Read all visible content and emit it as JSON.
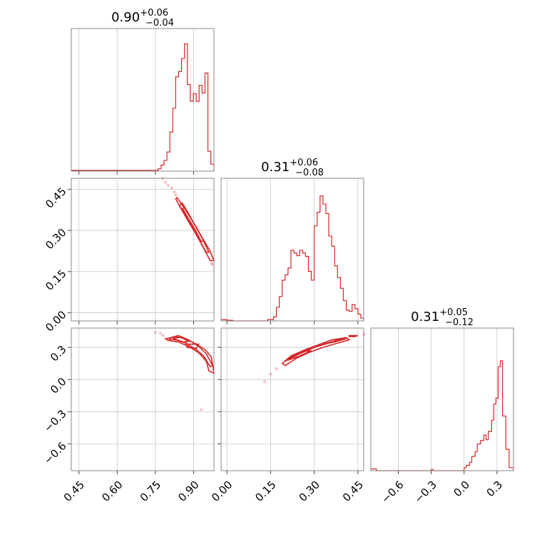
{
  "colors": {
    "main": "#d62728",
    "grid": "#c8c8c8",
    "frame": "#888888"
  },
  "chart_data": [
    {
      "type": "histogram",
      "panel": "diag-0",
      "title": {
        "value": "0.90",
        "plus": "+0.06",
        "minus": "−0.04"
      },
      "xlim": [
        0.42,
        0.98
      ],
      "xticks": [
        0.45,
        0.6,
        0.75,
        0.9
      ],
      "bins_x": [
        0.42,
        0.7608,
        0.7723,
        0.7838,
        0.7953,
        0.8068,
        0.8183,
        0.8298,
        0.8413,
        0.8528,
        0.8643,
        0.8758,
        0.8873,
        0.8988,
        0.9103,
        0.9218,
        0.9333,
        0.9448,
        0.9563,
        0.9678,
        0.98
      ],
      "counts": [
        1,
        3,
        8,
        14,
        25,
        51,
        82,
        123,
        130,
        147,
        166,
        113,
        91,
        101,
        91,
        112,
        102,
        128,
        26,
        9
      ],
      "ylim": [
        0,
        186
      ]
    },
    {
      "type": "histogram",
      "panel": "diag-1",
      "title": {
        "value": "0.31",
        "plus": "+0.06",
        "minus": "−0.08"
      },
      "xlim": [
        -0.02,
        0.47
      ],
      "xticks": [
        0.0,
        0.15,
        0.3,
        0.45
      ],
      "bins_x": [
        -0.02,
        0.0,
        0.02,
        0.14,
        0.16,
        0.17,
        0.18,
        0.19,
        0.2,
        0.21,
        0.22,
        0.23,
        0.24,
        0.25,
        0.26,
        0.27,
        0.28,
        0.29,
        0.3,
        0.31,
        0.32,
        0.33,
        0.34,
        0.35,
        0.36,
        0.37,
        0.38,
        0.39,
        0.4,
        0.41,
        0.42,
        0.43,
        0.44,
        0.45,
        0.46,
        0.47
      ],
      "counts": [
        2,
        1,
        0,
        2,
        6,
        20,
        36,
        60,
        68,
        78,
        104,
        100,
        96,
        104,
        100,
        95,
        73,
        60,
        140,
        160,
        184,
        172,
        158,
        125,
        110,
        81,
        64,
        48,
        30,
        16,
        14,
        24,
        18,
        10,
        4
      ],
      "ylim": [
        0,
        210
      ]
    },
    {
      "type": "histogram",
      "panel": "diag-2",
      "title": {
        "value": "0.31",
        "plus": "+0.05",
        "minus": "−0.12"
      },
      "xlim": [
        -0.85,
        0.45
      ],
      "xticks": [
        -0.6,
        -0.3,
        0.0,
        0.3
      ],
      "bins_x": [
        -0.85,
        -0.8,
        -0.3,
        -0.28,
        0.0,
        0.02,
        0.05,
        0.07,
        0.1,
        0.12,
        0.15,
        0.18,
        0.2,
        0.22,
        0.25,
        0.27,
        0.29,
        0.31,
        0.33,
        0.35,
        0.38,
        0.41,
        0.45
      ],
      "counts": [
        3,
        0,
        2,
        0,
        5,
        9,
        14,
        24,
        32,
        45,
        51,
        60,
        52,
        66,
        85,
        112,
        122,
        175,
        185,
        92,
        36,
        5
      ],
      "ylim": [
        0,
        240
      ]
    },
    {
      "type": "scatter",
      "panel": "pair-1-0",
      "xlim": [
        0.42,
        0.98
      ],
      "ylim": [
        -0.03,
        0.49
      ],
      "xticks": [
        0.45,
        0.6,
        0.75,
        0.9
      ],
      "yticks": [
        0.0,
        0.15,
        0.3,
        0.45
      ],
      "contours": [
        [
          [
            0.855,
            0.4
          ],
          [
            0.875,
            0.37
          ],
          [
            0.905,
            0.32
          ],
          [
            0.935,
            0.27
          ],
          [
            0.96,
            0.22
          ],
          [
            0.95,
            0.22
          ],
          [
            0.92,
            0.27
          ],
          [
            0.89,
            0.32
          ],
          [
            0.865,
            0.36
          ],
          [
            0.845,
            0.39
          ]
        ],
        [
          [
            0.865,
            0.385
          ],
          [
            0.885,
            0.35
          ],
          [
            0.915,
            0.305
          ],
          [
            0.94,
            0.26
          ],
          [
            0.93,
            0.26
          ],
          [
            0.905,
            0.305
          ],
          [
            0.875,
            0.35
          ],
          [
            0.857,
            0.38
          ]
        ],
        [
          [
            0.835,
            0.42
          ],
          [
            0.865,
            0.38
          ],
          [
            0.895,
            0.335
          ],
          [
            0.93,
            0.28
          ],
          [
            0.965,
            0.225
          ],
          [
            0.98,
            0.19
          ],
          [
            0.965,
            0.19
          ],
          [
            0.94,
            0.235
          ],
          [
            0.91,
            0.285
          ],
          [
            0.875,
            0.34
          ],
          [
            0.85,
            0.38
          ],
          [
            0.83,
            0.415
          ]
        ]
      ],
      "faint_points": [
        [
          0.78,
          0.49
        ],
        [
          0.79,
          0.475
        ],
        [
          0.8,
          0.465
        ],
        [
          0.815,
          0.455
        ],
        [
          0.825,
          0.44
        ],
        [
          0.83,
          0.43
        ],
        [
          0.97,
          0.18
        ],
        [
          0.975,
          0.175
        ]
      ]
    },
    {
      "type": "scatter",
      "panel": "pair-2-0",
      "xlim": [
        0.42,
        0.98
      ],
      "ylim": [
        -0.85,
        0.48
      ],
      "xticks": [
        0.45,
        0.6,
        0.75,
        0.9
      ],
      "yticks": [
        -0.6,
        -0.3,
        0.0,
        0.3
      ],
      "contours": [
        [
          [
            0.81,
            0.39
          ],
          [
            0.84,
            0.41
          ],
          [
            0.88,
            0.37
          ],
          [
            0.92,
            0.31
          ],
          [
            0.95,
            0.24
          ],
          [
            0.975,
            0.13
          ],
          [
            0.965,
            0.12
          ],
          [
            0.94,
            0.22
          ],
          [
            0.91,
            0.28
          ],
          [
            0.87,
            0.34
          ],
          [
            0.83,
            0.37
          ],
          [
            0.805,
            0.375
          ]
        ],
        [
          [
            0.82,
            0.385
          ],
          [
            0.85,
            0.395
          ],
          [
            0.88,
            0.355
          ],
          [
            0.86,
            0.35
          ],
          [
            0.835,
            0.37
          ]
        ],
        [
          [
            0.87,
            0.33
          ],
          [
            0.92,
            0.33
          ],
          [
            0.91,
            0.29
          ],
          [
            0.875,
            0.3
          ]
        ],
        [
          [
            0.79,
            0.38
          ],
          [
            0.83,
            0.4
          ],
          [
            0.87,
            0.38
          ],
          [
            0.91,
            0.33
          ],
          [
            0.945,
            0.28
          ],
          [
            0.97,
            0.21
          ],
          [
            0.98,
            0.06
          ],
          [
            0.96,
            0.08
          ],
          [
            0.95,
            0.17
          ],
          [
            0.92,
            0.25
          ],
          [
            0.88,
            0.31
          ],
          [
            0.84,
            0.35
          ],
          [
            0.8,
            0.365
          ]
        ]
      ],
      "faint_points": [
        [
          0.75,
          0.44
        ],
        [
          0.77,
          0.43
        ],
        [
          0.78,
          0.41
        ],
        [
          0.93,
          -0.28
        ]
      ]
    },
    {
      "type": "scatter",
      "panel": "pair-2-1",
      "xlim": [
        -0.02,
        0.47
      ],
      "ylim": [
        -0.85,
        0.48
      ],
      "xticks": [
        0.0,
        0.15,
        0.3,
        0.45
      ],
      "yticks": [
        -0.6,
        -0.3,
        0.0,
        0.3
      ],
      "contours": [
        [
          [
            0.2,
            0.17
          ],
          [
            0.25,
            0.24
          ],
          [
            0.3,
            0.3
          ],
          [
            0.35,
            0.34
          ],
          [
            0.4,
            0.38
          ],
          [
            0.37,
            0.36
          ],
          [
            0.32,
            0.32
          ],
          [
            0.27,
            0.27
          ],
          [
            0.22,
            0.21
          ]
        ],
        [
          [
            0.19,
            0.15
          ],
          [
            0.22,
            0.22
          ],
          [
            0.27,
            0.28
          ],
          [
            0.31,
            0.32
          ],
          [
            0.36,
            0.37
          ],
          [
            0.41,
            0.39
          ],
          [
            0.42,
            0.37
          ],
          [
            0.38,
            0.34
          ],
          [
            0.33,
            0.3
          ],
          [
            0.28,
            0.25
          ],
          [
            0.24,
            0.2
          ],
          [
            0.2,
            0.13
          ]
        ],
        [
          [
            0.21,
            0.18
          ],
          [
            0.25,
            0.22
          ],
          [
            0.29,
            0.27
          ],
          [
            0.26,
            0.26
          ],
          [
            0.23,
            0.22
          ]
        ],
        [
          [
            0.33,
            0.33
          ],
          [
            0.38,
            0.37
          ],
          [
            0.41,
            0.38
          ],
          [
            0.37,
            0.35
          ]
        ],
        [
          [
            0.42,
            0.41
          ],
          [
            0.45,
            0.41
          ],
          [
            0.44,
            0.4
          ],
          [
            0.42,
            0.4
          ]
        ]
      ],
      "faint_points": [
        [
          0.17,
          0.1
        ],
        [
          0.15,
          0.05
        ],
        [
          0.13,
          -0.02
        ],
        [
          0.47,
          0.42
        ]
      ]
    }
  ]
}
